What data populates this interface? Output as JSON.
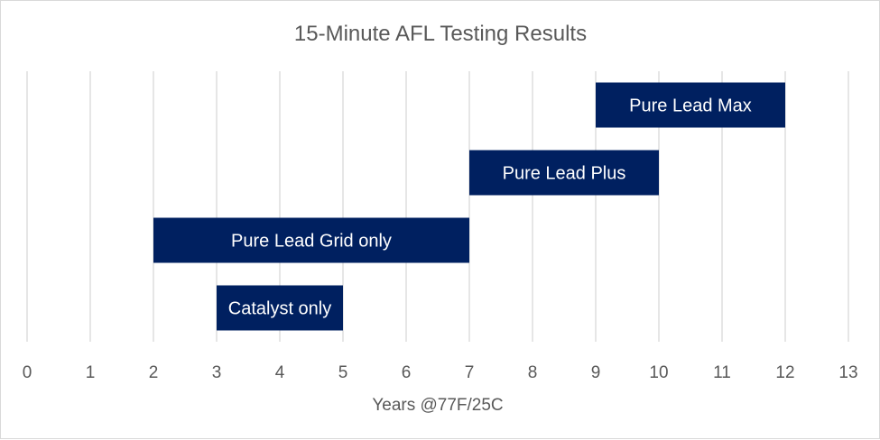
{
  "chart_data": {
    "type": "bar",
    "orientation": "horizontal-floating",
    "title": "15-Minute AFL Testing Results",
    "xlabel": "Years @77F/25C",
    "ylabel": "",
    "xlim": [
      0,
      13
    ],
    "x_ticks": [
      0,
      1,
      2,
      3,
      4,
      5,
      6,
      7,
      8,
      9,
      10,
      11,
      12,
      13
    ],
    "grid": "vertical",
    "legend": "none",
    "bar_color": "#002060",
    "bar_text_color": "#ffffff",
    "bars": [
      {
        "label": "Catalyst only",
        "start": 3,
        "end": 5
      },
      {
        "label": "Pure Lead Grid only",
        "start": 2,
        "end": 7
      },
      {
        "label": "Pure Lead Plus",
        "start": 7,
        "end": 10
      },
      {
        "label": "Pure Lead Max",
        "start": 9,
        "end": 12
      }
    ]
  }
}
